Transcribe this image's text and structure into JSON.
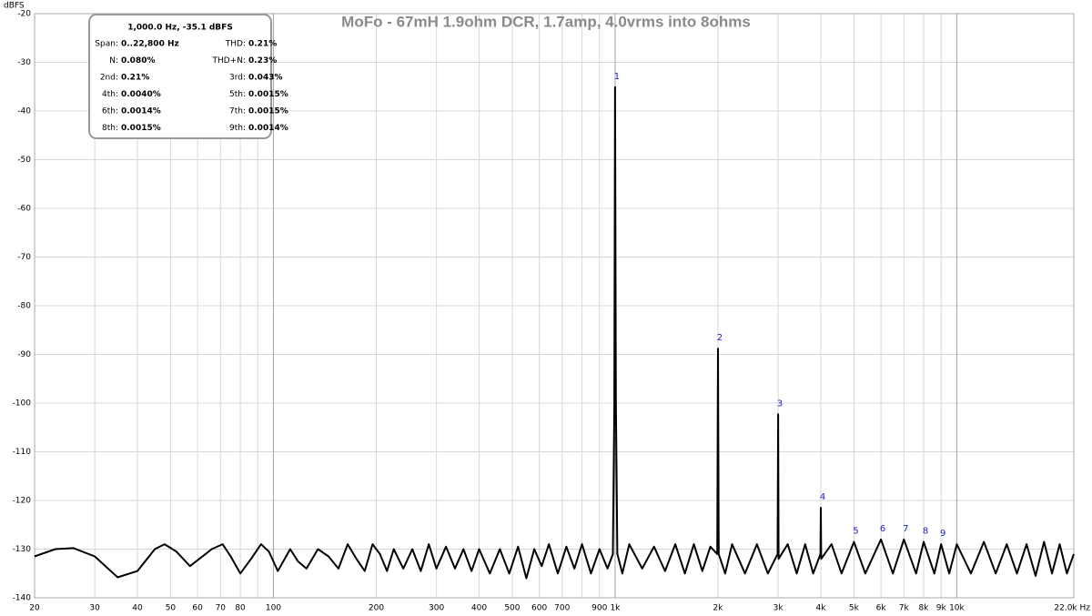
{
  "chart_data": {
    "type": "line",
    "title": "MoFo - 67mH 1.9ohm DCR, 1.7amp, 4.0vrms into 8ohms",
    "y_label": "dBFS",
    "log_x": true,
    "grid": true,
    "xlim": [
      20,
      22000
    ],
    "ylim": [
      -140,
      -20
    ],
    "yticks": [
      -20,
      -30,
      -40,
      -50,
      -60,
      -70,
      -80,
      -90,
      -100,
      -110,
      -120,
      -130,
      -140
    ],
    "xticks": [
      20,
      30,
      40,
      50,
      60,
      70,
      80,
      100,
      200,
      300,
      400,
      500,
      600,
      700,
      900,
      {
        "value": 1000,
        "label": "1k"
      },
      {
        "value": 2000,
        "label": "2k"
      },
      {
        "value": 3000,
        "label": "3k"
      },
      {
        "value": 4000,
        "label": "4k"
      },
      {
        "value": 5000,
        "label": "5k"
      },
      {
        "value": 6000,
        "label": "6k"
      },
      {
        "value": 7000,
        "label": "7k"
      },
      {
        "value": 8000,
        "label": "8k"
      },
      {
        "value": 9000,
        "label": "9k"
      },
      {
        "value": 10000,
        "label": "10k"
      },
      {
        "value": 22000,
        "label": "22.0k Hz"
      }
    ],
    "xgrid_minor": [
      90,
      800
    ],
    "xgrid_major": [
      100,
      1000,
      10000
    ],
    "x": [
      20,
      23,
      26,
      30,
      35,
      40,
      45,
      48,
      52,
      57,
      62,
      66,
      71,
      75,
      80,
      86,
      92,
      97,
      103,
      112,
      118,
      125,
      135,
      145,
      155,
      165,
      175,
      185,
      195,
      205,
      215,
      225,
      240,
      255,
      270,
      285,
      300,
      320,
      340,
      360,
      380,
      400,
      430,
      460,
      490,
      520,
      550,
      580,
      610,
      640,
      680,
      720,
      760,
      800,
      850,
      900,
      950,
      985,
      995,
      1000,
      1005,
      1015,
      1050,
      1100,
      1200,
      1300,
      1400,
      1500,
      1600,
      1700,
      1800,
      1900,
      1990,
      2000,
      2010,
      2100,
      2200,
      2400,
      2600,
      2800,
      2990,
      3000,
      3010,
      3200,
      3400,
      3600,
      3800,
      3990,
      4000,
      4010,
      4300,
      4600,
      5000,
      5400,
      6000,
      6500,
      7000,
      7600,
      8000,
      8600,
      9000,
      9500,
      10000,
      11000,
      12000,
      13000,
      14000,
      15000,
      16000,
      17000,
      18000,
      19000,
      20000,
      21000,
      22000
    ],
    "series": [
      {
        "name": "Spectrum",
        "color": "#000000",
        "values": [
          -131.5,
          -130,
          -129.8,
          -131.5,
          -135.8,
          -134.5,
          -130,
          -129,
          -130.5,
          -133.5,
          -131.5,
          -130,
          -129,
          -131.5,
          -135,
          -132,
          -129,
          -130.5,
          -134.5,
          -130,
          -132.5,
          -134,
          -130,
          -131.5,
          -134,
          -129,
          -132,
          -134.5,
          -129,
          -131,
          -134.5,
          -130,
          -134,
          -130,
          -134.5,
          -129,
          -134,
          -129.5,
          -134,
          -130,
          -134.5,
          -130,
          -135,
          -130,
          -135,
          -129.5,
          -136,
          -130,
          -133.5,
          -129,
          -135,
          -129.5,
          -134,
          -129,
          -135,
          -130,
          -134,
          -131,
          -100,
          -35.1,
          -100,
          -131,
          -135,
          -129,
          -134,
          -129.5,
          -134.5,
          -129,
          -135,
          -129,
          -134.5,
          -129.5,
          -131,
          -88.8,
          -131,
          -135,
          -129,
          -135,
          -129,
          -135,
          -131,
          -102.3,
          -132,
          -129,
          -135,
          -129,
          -135,
          -131,
          -121.5,
          -132,
          -129,
          -135,
          -128.5,
          -135,
          -128,
          -135,
          -128,
          -135,
          -128.5,
          -135,
          -129,
          -135,
          -129,
          -135,
          -128.5,
          -135,
          -129,
          -135,
          -129,
          -135.5,
          -128.5,
          -135,
          -129,
          -135,
          -131
        ]
      }
    ],
    "harmonic_markers": {
      "color": "#1a1acc",
      "labels": [
        "1",
        "2",
        "3",
        "4",
        "5",
        "6",
        "7",
        "8",
        "9"
      ],
      "x": [
        1000,
        2000,
        3000,
        4000,
        5000,
        6000,
        7000,
        8000,
        9000
      ],
      "y": [
        -35.1,
        -88.8,
        -102.3,
        -121.5,
        -128.5,
        -128,
        -128,
        -128.5,
        -129
      ]
    },
    "info_box": {
      "header": "1,000.0 Hz, -35.1 dBFS",
      "rows": [
        [
          "Span:",
          "0..22,800 Hz",
          "THD:",
          "0.21%"
        ],
        [
          "N:",
          "0.080%",
          "THD+N:",
          "0.23%"
        ],
        [
          "2nd:",
          "0.21%",
          "3rd:",
          "0.043%"
        ],
        [
          "4th:",
          "0.0040%",
          "5th:",
          "0.0015%"
        ],
        [
          "6th:",
          "0.0014%",
          "7th:",
          "0.0015%"
        ],
        [
          "8th:",
          "0.0015%",
          "9th:",
          "0.0014%"
        ]
      ]
    }
  }
}
